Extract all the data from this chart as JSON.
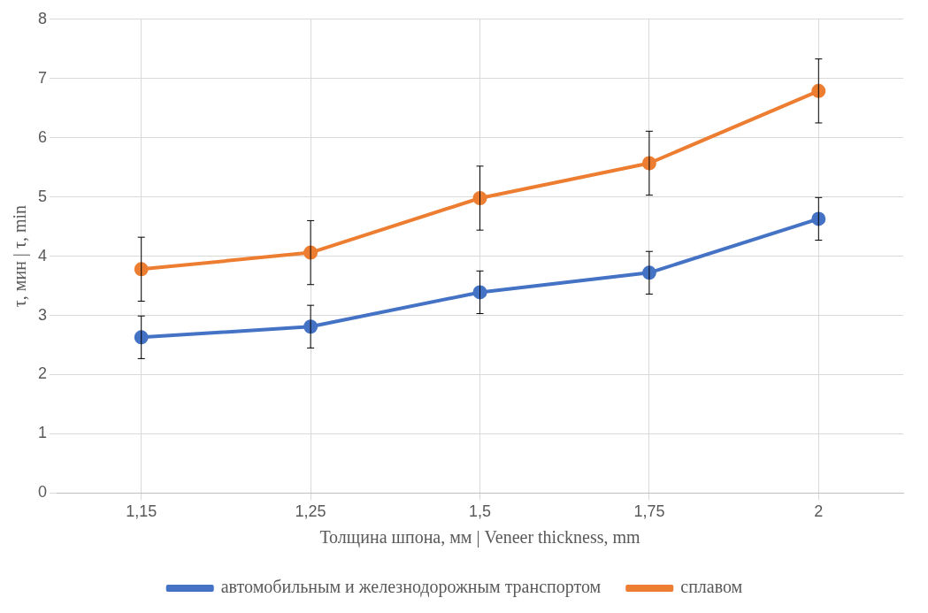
{
  "chart_data": {
    "type": "line",
    "xlabel": "Толщина шпона, мм | Veneer thickness, mm",
    "ylabel": "τ, мин | τ, min",
    "categories": [
      "1,15",
      "1,25",
      "1,5",
      "1,75",
      "2"
    ],
    "series": [
      {
        "name": "автомобильным и железнодорожным транспортом",
        "color": "#4472c4",
        "values": [
          2.63,
          2.81,
          3.39,
          3.72,
          4.63
        ],
        "errors": [
          0.36,
          0.36,
          0.36,
          0.36,
          0.36
        ]
      },
      {
        "name": "сплавом",
        "color": "#ed7d31",
        "values": [
          3.78,
          4.06,
          4.98,
          5.57,
          6.79
        ],
        "errors": [
          0.54,
          0.54,
          0.54,
          0.54,
          0.54
        ]
      }
    ],
    "ylim": [
      0,
      8
    ],
    "yticks": [
      0,
      1,
      2,
      3,
      4,
      5,
      6,
      7,
      8
    ],
    "grid": true,
    "legend": "bottom",
    "marker": "circle",
    "line_style": "solid"
  }
}
